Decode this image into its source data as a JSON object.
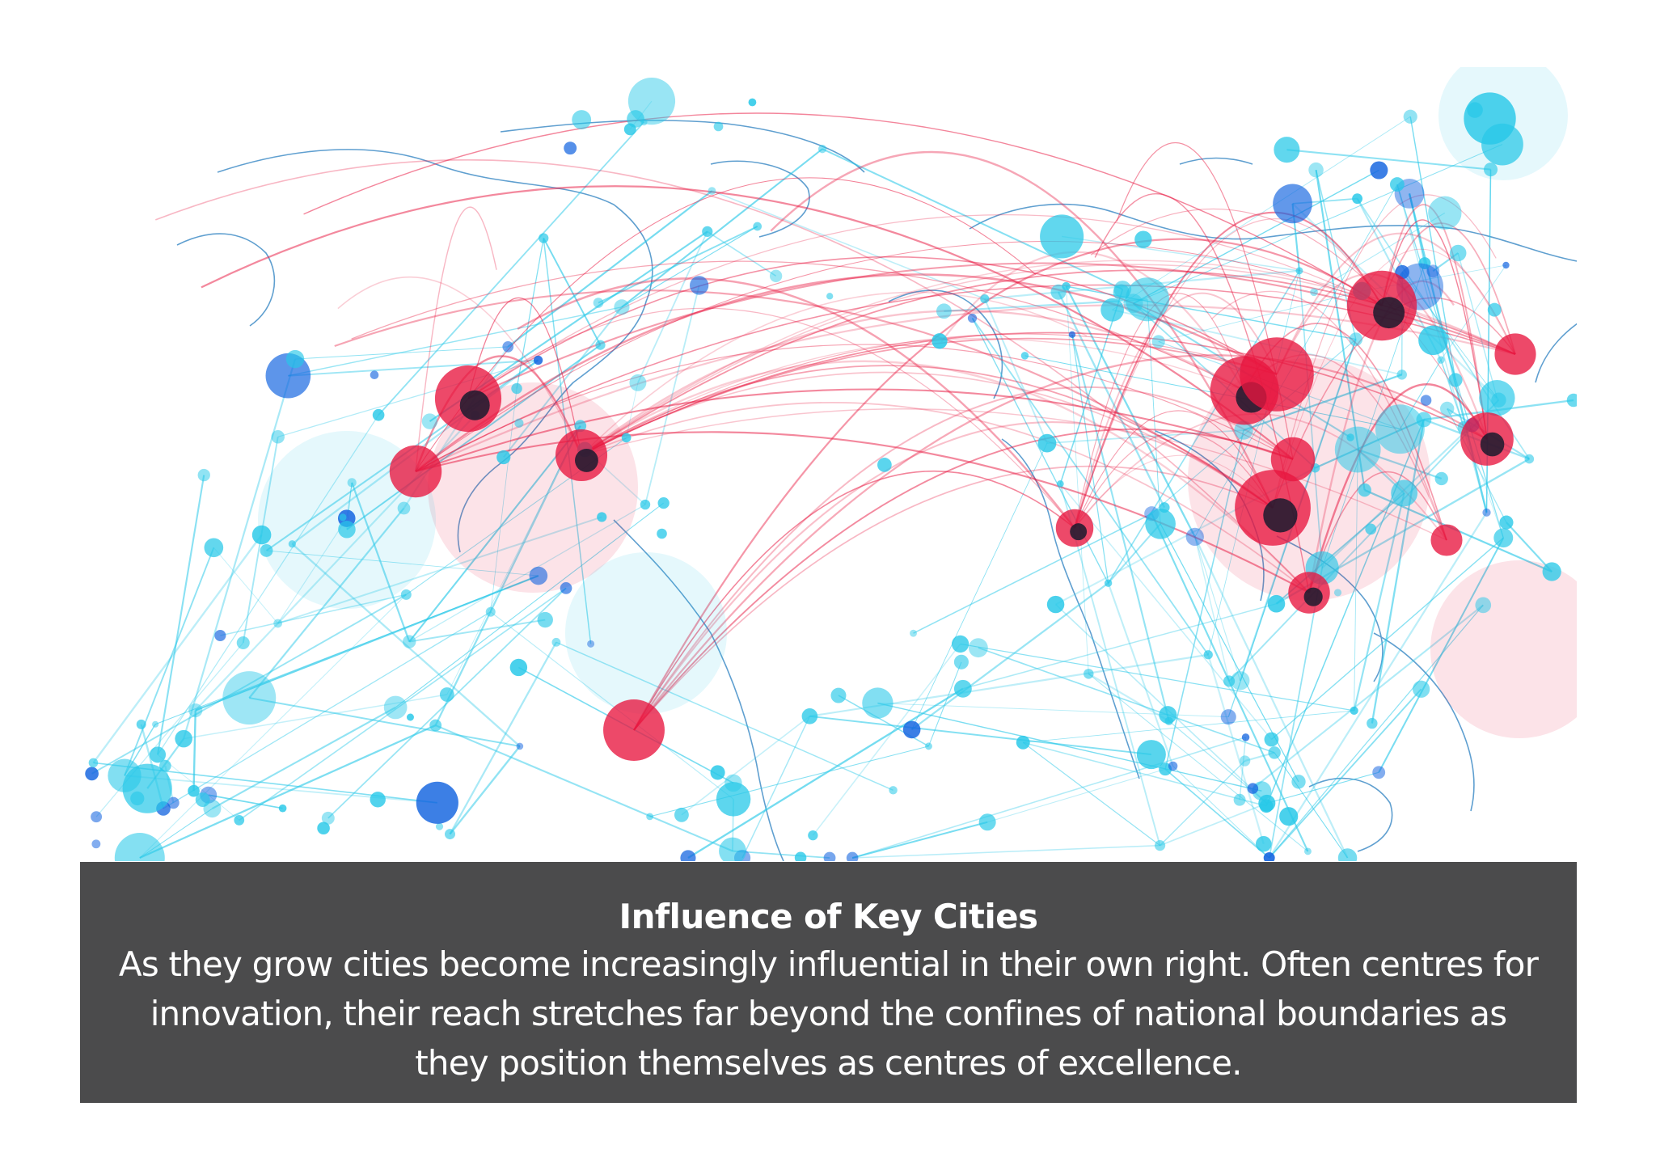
{
  "figure": {
    "image_subject": "network-world-map",
    "colors": {
      "page_background": "#ffffff",
      "caption_background": "#4b4b4c",
      "caption_text": "#ffffff",
      "node_cyan": "#27c8e8",
      "node_blue": "#1565e0",
      "node_red": "#e8163f",
      "node_dark": "#1a1a2e",
      "coastline": "#2a7fc0"
    }
  },
  "caption": {
    "title": "Influence of Key Cities",
    "body": "As they grow cities become increasingly influential in their own right. Often centres for innovation, their reach stretches far beyond the confines of national boundaries as they position themselves as centres of excellence."
  }
}
